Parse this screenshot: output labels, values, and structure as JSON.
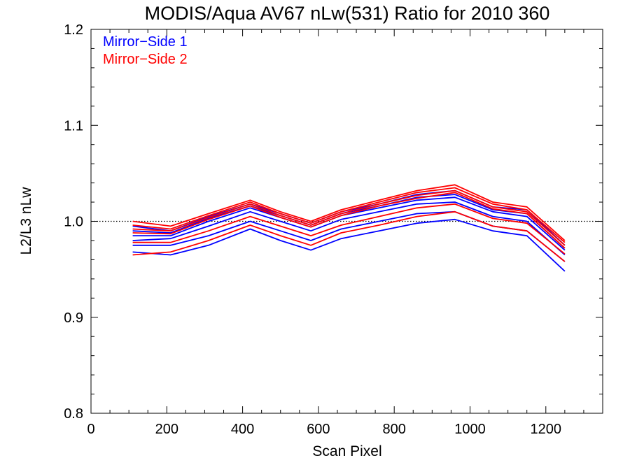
{
  "chart_data": {
    "type": "line",
    "title": "MODIS/Aqua AV67 nLw(531) Ratio for 2010 360",
    "xlabel": "Scan Pixel",
    "ylabel": "L2/L3 nLw",
    "xlim": [
      0,
      1350
    ],
    "ylim": [
      0.8,
      1.2
    ],
    "xticks": [
      0,
      200,
      400,
      600,
      800,
      1000,
      1200
    ],
    "yticks": [
      0.8,
      0.9,
      1.0,
      1.1,
      1.2
    ],
    "xtick_labels": [
      "0",
      "200",
      "400",
      "600",
      "800",
      "1000",
      "1200"
    ],
    "ytick_labels": [
      "0.8",
      "0.9",
      "1.0",
      "1.1",
      "1.2"
    ],
    "reference_line": {
      "y": 1.0,
      "style": "dotted"
    },
    "grid": false,
    "legend_position": "top-left",
    "x": [
      110,
      210,
      310,
      420,
      500,
      580,
      660,
      760,
      860,
      960,
      1060,
      1150,
      1250
    ],
    "series": [
      {
        "name": "Mirror-Side 1",
        "color": "#0000ff",
        "values": [
          0.995,
          0.99,
          1.005,
          1.018,
          1.008,
          0.998,
          1.01,
          1.018,
          1.028,
          1.032,
          1.015,
          1.012,
          0.975
        ]
      },
      {
        "name": "Mirror-Side 1",
        "color": "#0000ff",
        "values": [
          0.99,
          0.988,
          1.003,
          1.016,
          1.006,
          0.996,
          1.008,
          1.016,
          1.025,
          1.028,
          1.012,
          1.008,
          0.972
        ]
      },
      {
        "name": "Mirror-Side 1",
        "color": "#0000ff",
        "values": [
          0.985,
          0.985,
          1.0,
          1.014,
          1.004,
          0.994,
          1.006,
          1.014,
          1.022,
          1.025,
          1.01,
          1.005,
          0.97
        ]
      },
      {
        "name": "Mirror-Side 1",
        "color": "#0000ff",
        "values": [
          0.98,
          0.982,
          0.995,
          1.01,
          1.0,
          0.99,
          1.002,
          1.01,
          1.018,
          1.02,
          1.005,
          1.0,
          0.965
        ]
      },
      {
        "name": "Mirror-Side 1",
        "color": "#0000ff",
        "values": [
          0.975,
          0.975,
          0.985,
          1.0,
          0.99,
          0.98,
          0.992,
          1.0,
          1.008,
          1.01,
          0.995,
          0.99,
          0.958
        ]
      },
      {
        "name": "Mirror-Side 1",
        "color": "#0000ff",
        "values": [
          0.968,
          0.965,
          0.975,
          0.992,
          0.98,
          0.97,
          0.982,
          0.99,
          0.998,
          1.002,
          0.99,
          0.985,
          0.948
        ]
      },
      {
        "name": "Mirror-Side 2",
        "color": "#ff0000",
        "values": [
          1.0,
          0.995,
          1.008,
          1.022,
          1.01,
          1.0,
          1.012,
          1.022,
          1.032,
          1.038,
          1.02,
          1.015,
          0.98
        ]
      },
      {
        "name": "Mirror-Side 2",
        "color": "#ff0000",
        "values": [
          0.996,
          0.992,
          1.006,
          1.02,
          1.008,
          0.998,
          1.01,
          1.02,
          1.03,
          1.035,
          1.018,
          1.012,
          0.978
        ]
      },
      {
        "name": "Mirror-Side 2",
        "color": "#ff0000",
        "values": [
          0.992,
          0.99,
          1.004,
          1.018,
          1.006,
          0.996,
          1.008,
          1.018,
          1.027,
          1.032,
          1.015,
          1.01,
          0.975
        ]
      },
      {
        "name": "Mirror-Side 2",
        "color": "#ff0000",
        "values": [
          0.988,
          0.987,
          1.002,
          1.016,
          1.004,
          0.994,
          1.006,
          1.016,
          1.024,
          1.03,
          1.013,
          1.008,
          0.972
        ]
      },
      {
        "name": "Mirror-Side 2",
        "color": "#ff0000",
        "values": [
          0.978,
          0.978,
          0.99,
          1.005,
          0.995,
          0.985,
          0.996,
          1.005,
          1.014,
          1.018,
          1.003,
          0.998,
          0.966
        ]
      },
      {
        "name": "Mirror-Side 2",
        "color": "#ff0000",
        "values": [
          0.965,
          0.968,
          0.98,
          0.996,
          0.985,
          0.975,
          0.988,
          0.996,
          1.005,
          1.01,
          0.995,
          0.99,
          0.958
        ]
      }
    ],
    "legend": [
      {
        "label": "Mirror−Side 1",
        "color": "#0000ff"
      },
      {
        "label": "Mirror−Side 2",
        "color": "#ff0000"
      }
    ]
  }
}
